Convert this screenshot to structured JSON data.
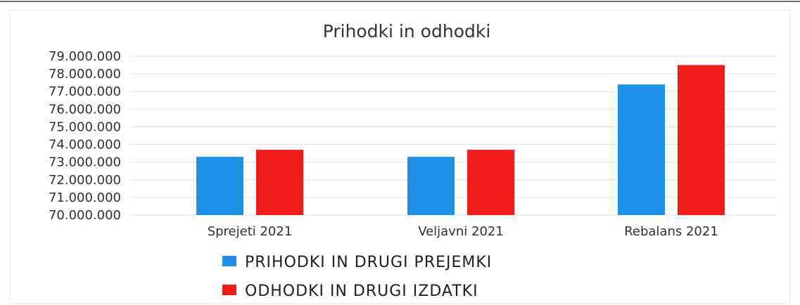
{
  "chart_data": {
    "type": "bar",
    "title": "Prihodki in odhodki",
    "xlabel": "",
    "ylabel": "",
    "categories": [
      "Sprejeti 2021",
      "Veljavni 2021",
      "Rebalans 2021"
    ],
    "series": [
      {
        "name": "PRIHODKI IN DRUGI PREJEMKI",
        "color": "#1e90e6",
        "values": [
          73300000,
          73300000,
          77400000
        ]
      },
      {
        "name": "ODHODKI IN DRUGI IZDATKI",
        "color": "#ee1c1c",
        "values": [
          73700000,
          73700000,
          78500000
        ]
      }
    ],
    "ylim": [
      70000000,
      79000000
    ],
    "yticks": [
      {
        "value": 70000000,
        "label": "70.000.000"
      },
      {
        "value": 71000000,
        "label": "71.000.000"
      },
      {
        "value": 72000000,
        "label": "72.000.000"
      },
      {
        "value": 73000000,
        "label": "73.000.000"
      },
      {
        "value": 74000000,
        "label": "74.000.000"
      },
      {
        "value": 75000000,
        "label": "75.000.000"
      },
      {
        "value": 76000000,
        "label": "76.000.000"
      },
      {
        "value": 77000000,
        "label": "77.000.000"
      },
      {
        "value": 78000000,
        "label": "78.000.000"
      },
      {
        "value": 79000000,
        "label": "79.000.000"
      }
    ],
    "grid": true,
    "legend_position": "bottom"
  }
}
